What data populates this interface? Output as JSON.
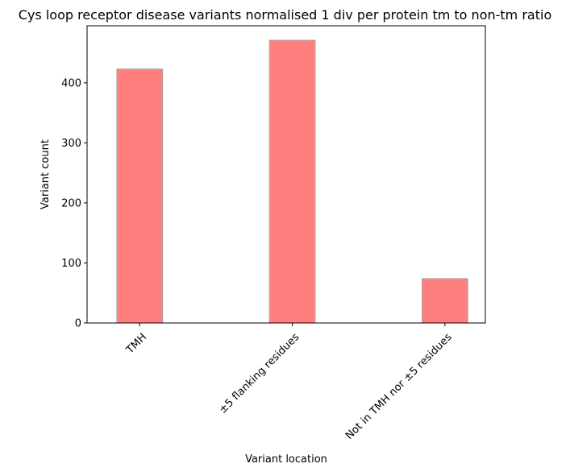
{
  "chart_data": {
    "type": "bar",
    "title": "Cys loop receptor disease variants normalised 1 div per protein tm to non-tm ratio",
    "xlabel": "Variant location",
    "ylabel": "Variant count",
    "categories": [
      "TMH",
      "±5 flanking residues",
      "Not in TMH nor ±5 residues"
    ],
    "values": [
      423,
      471,
      74
    ],
    "ylim": [
      0,
      495
    ],
    "yticks": [
      0,
      100,
      200,
      300,
      400
    ],
    "grid": false,
    "legend": "none",
    "bar_color": "#ff7f7f",
    "bar_edge_color": "#a9a9a9"
  }
}
